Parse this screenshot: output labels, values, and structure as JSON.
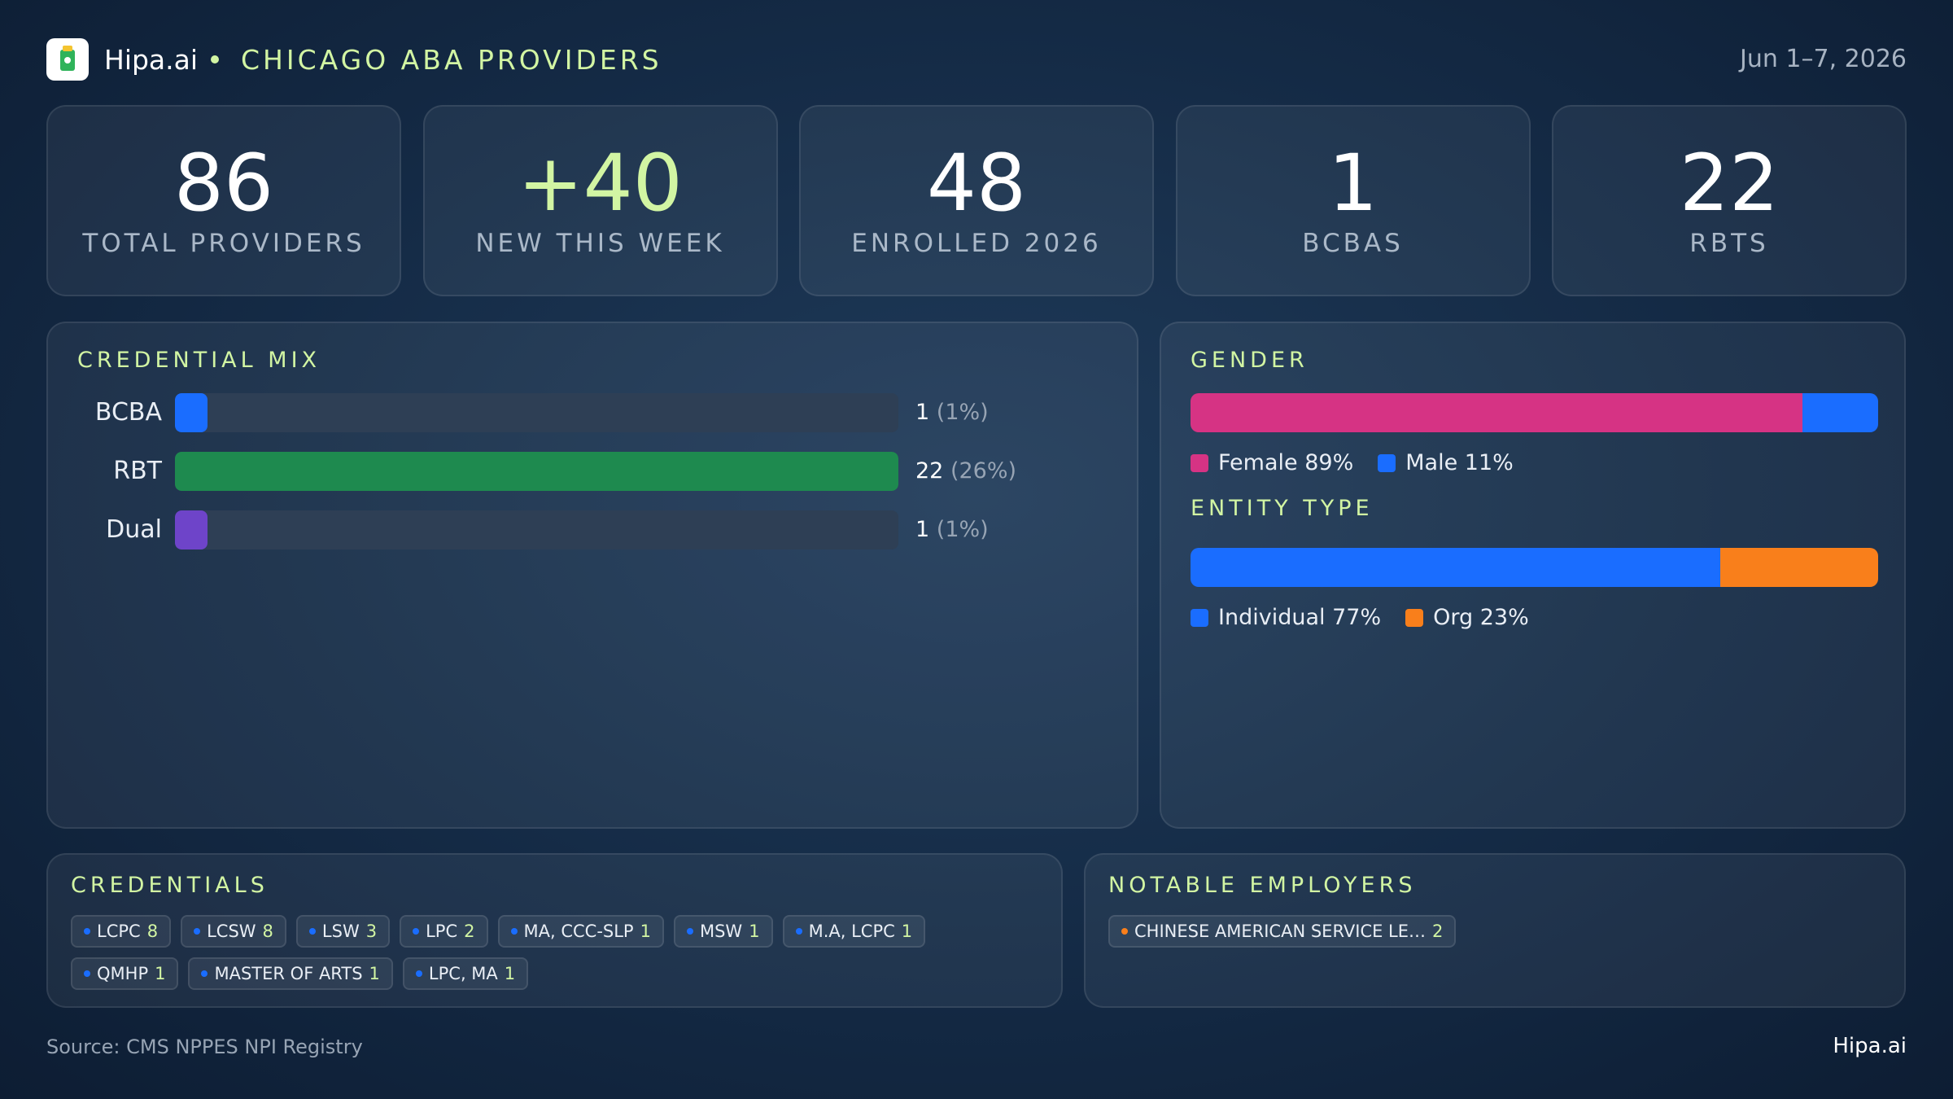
{
  "header": {
    "brand": "Hipa.ai",
    "title": "CHICAGO ABA PROVIDERS",
    "date": "Jun 1–7, 2026"
  },
  "kpis": [
    {
      "value": "86",
      "label": "TOTAL PROVIDERS"
    },
    {
      "value": "+40",
      "label": "NEW THIS WEEK"
    },
    {
      "value": "48",
      "label": "ENROLLED 2026"
    },
    {
      "value": "1",
      "label": "BCBAS"
    },
    {
      "value": "22",
      "label": "RBTS"
    }
  ],
  "credential_mix": {
    "title": "CREDENTIAL MIX",
    "xlim": [
      0,
      22
    ],
    "rows": [
      {
        "label": "BCBA",
        "value": 1,
        "percent_label": "(1%)",
        "color": "#1a6dff"
      },
      {
        "label": "RBT",
        "value": 22,
        "percent_label": "(26%)",
        "color": "#1e8a4f"
      },
      {
        "label": "Dual",
        "value": 1,
        "percent_label": "(1%)",
        "color": "#6e44c9"
      }
    ]
  },
  "gender": {
    "title": "GENDER",
    "series": [
      {
        "name": "Female",
        "value": 89,
        "value_label": "89%",
        "color": "#d63384"
      },
      {
        "name": "Male",
        "value": 11,
        "value_label": "11%",
        "color": "#1a6dff"
      }
    ]
  },
  "entity_type": {
    "title": "ENTITY TYPE",
    "series": [
      {
        "name": "Individual",
        "value": 77,
        "value_label": "77%",
        "color": "#1a6dff"
      },
      {
        "name": "Org",
        "value": 23,
        "value_label": "23%",
        "color": "#f97f1b"
      }
    ]
  },
  "credentials": {
    "title": "CREDENTIALS",
    "items": [
      {
        "name": "LCPC",
        "count": "8"
      },
      {
        "name": "LCSW",
        "count": "8"
      },
      {
        "name": "LSW",
        "count": "3"
      },
      {
        "name": "LPC",
        "count": "2"
      },
      {
        "name": "MA, CCC-SLP",
        "count": "1"
      },
      {
        "name": "MSW",
        "count": "1"
      },
      {
        "name": "M.A, LCPC",
        "count": "1"
      },
      {
        "name": "QMHP",
        "count": "1"
      },
      {
        "name": "MASTER OF ARTS",
        "count": "1"
      },
      {
        "name": "LPC, MA",
        "count": "1"
      }
    ]
  },
  "employers": {
    "title": "NOTABLE EMPLOYERS",
    "items": [
      {
        "name": "CHINESE AMERICAN SERVICE LE…",
        "count": "2"
      }
    ]
  },
  "footer": {
    "source": "Source: CMS NPPES NPI Registry",
    "brand": "Hipa.ai"
  }
}
